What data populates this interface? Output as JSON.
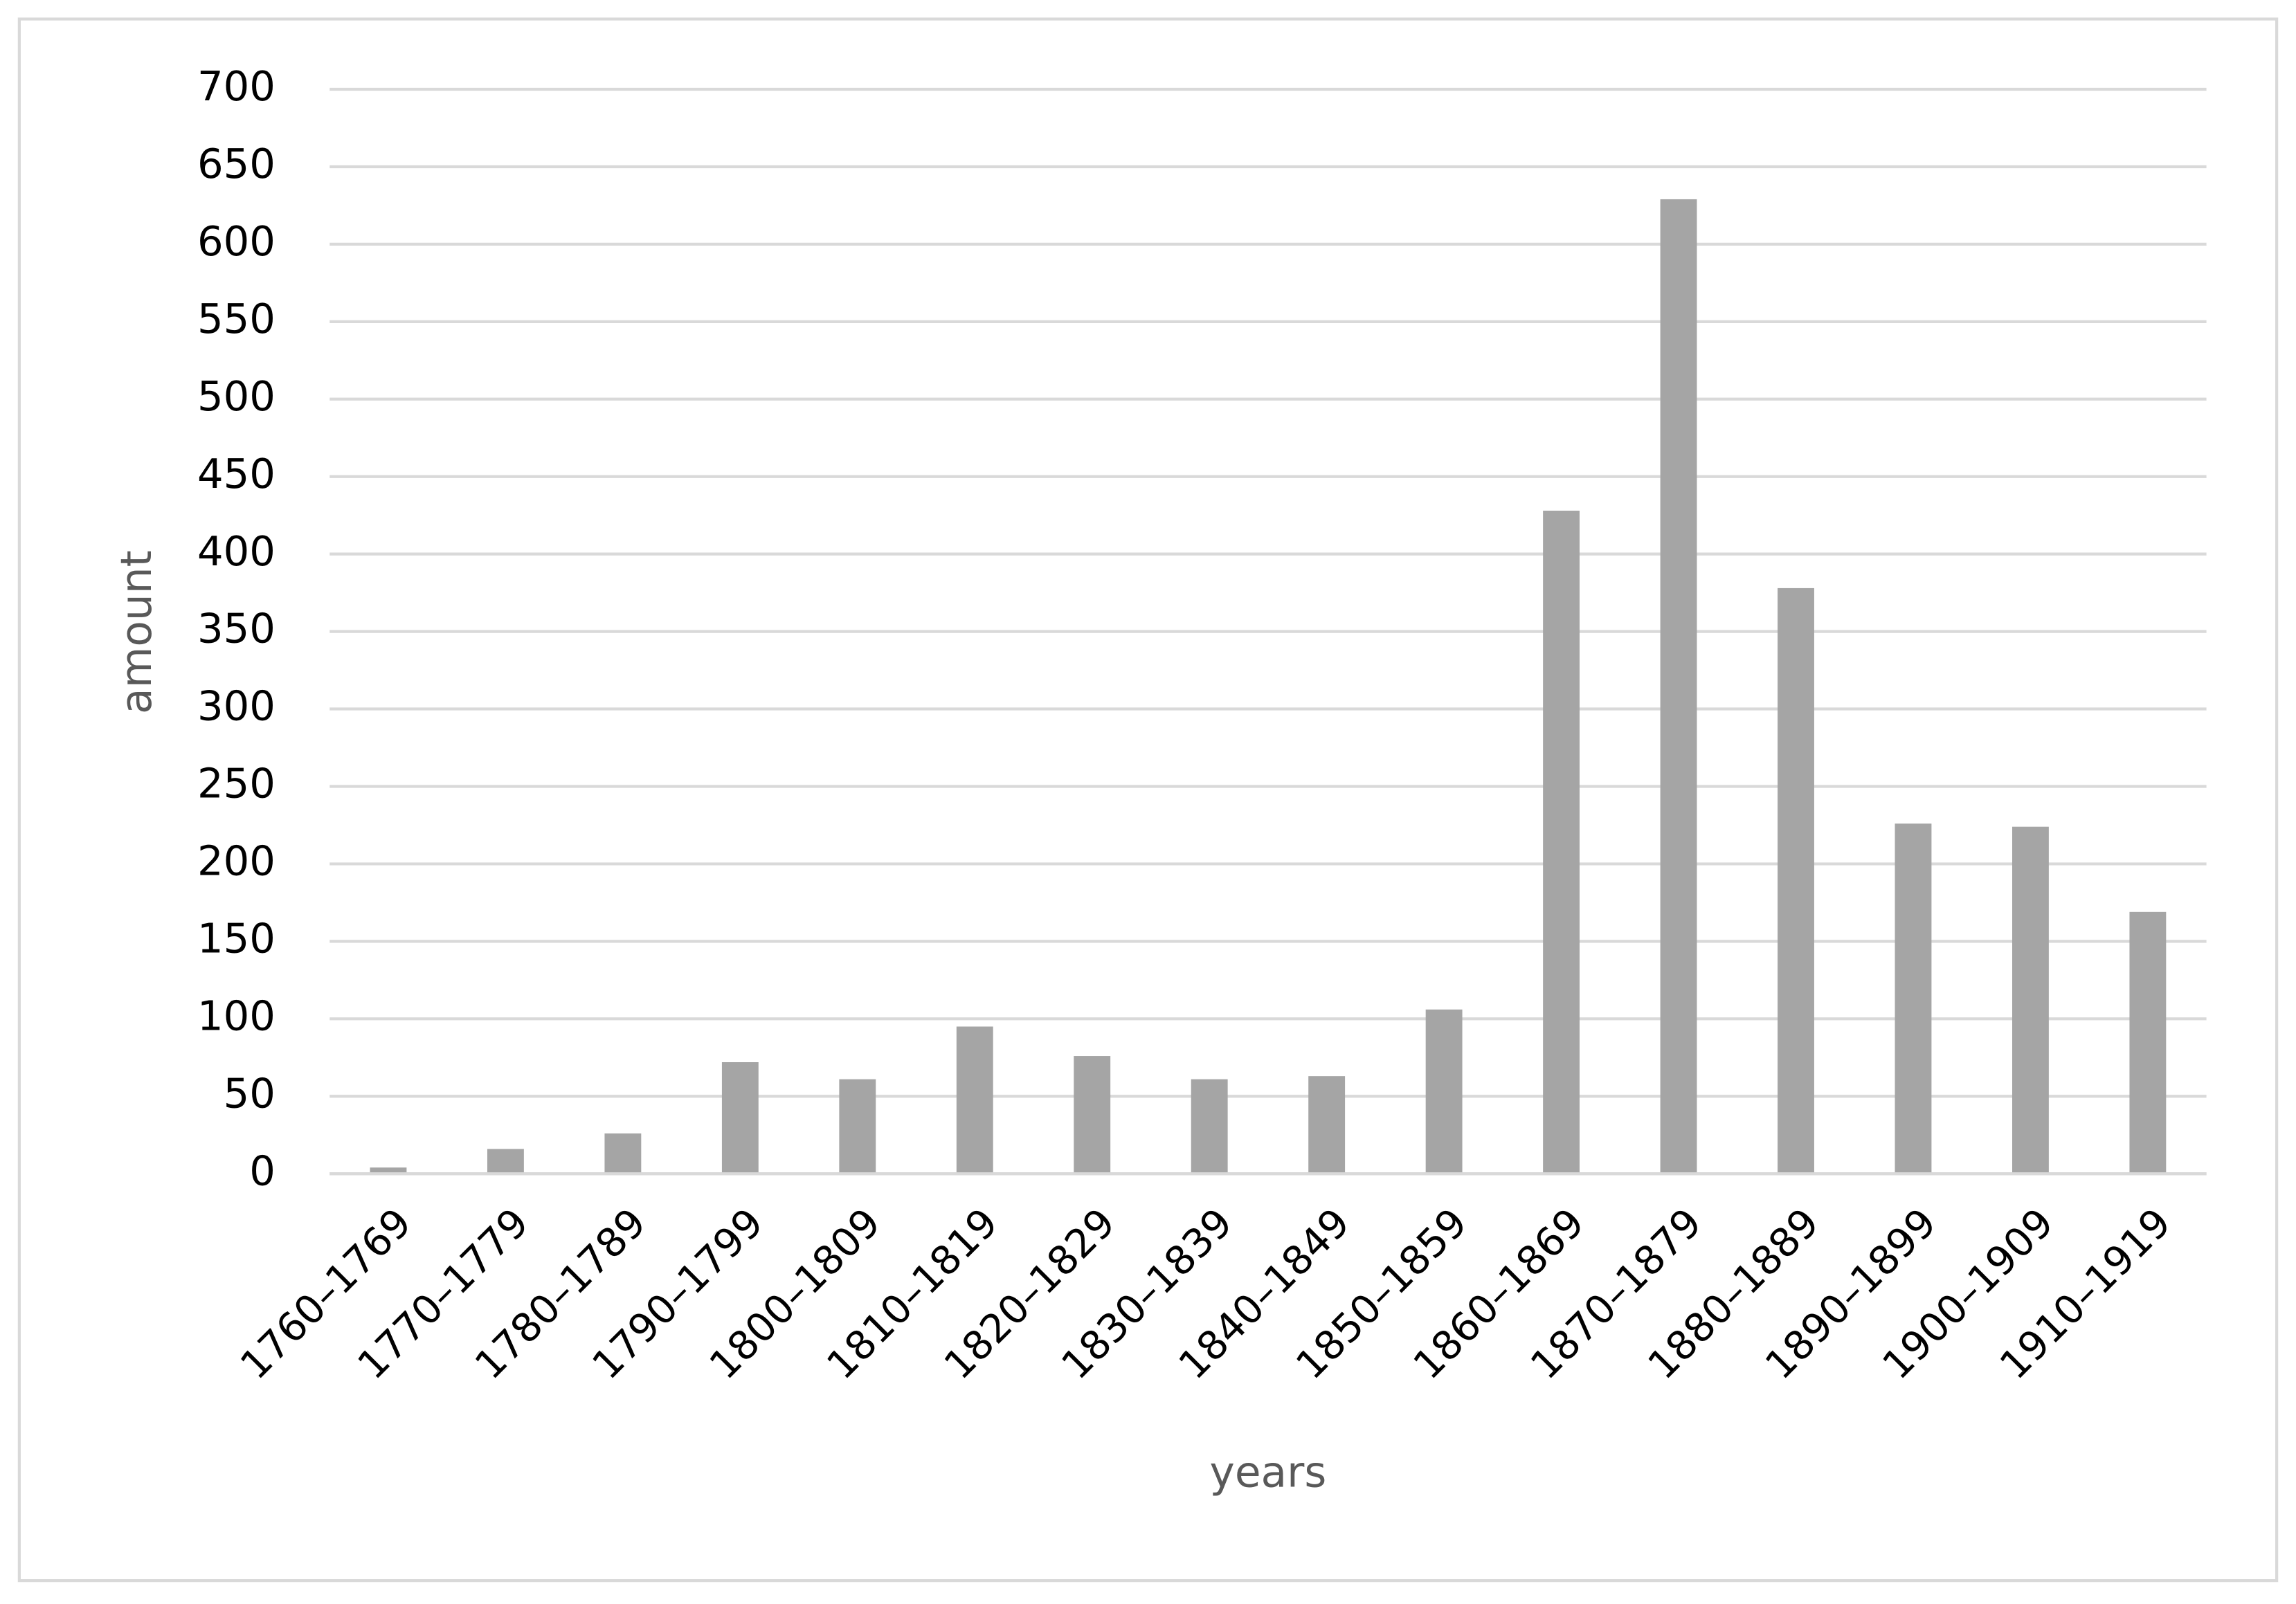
{
  "chart_data": {
    "type": "bar",
    "x_label": "years",
    "y_label": "amount",
    "categories": [
      "1760–1769",
      "1770–1779",
      "1780–1789",
      "1790–1799",
      "1800–1809",
      "1810–1819",
      "1820–1829",
      "1830–1839",
      "1840–1849",
      "1850–1859",
      "1860–1869",
      "1870–1879",
      "1880–1889",
      "1890–1899",
      "1900–1909",
      "1910–1919"
    ],
    "values": [
      4,
      16,
      26,
      72,
      61,
      95,
      76,
      61,
      63,
      106,
      428,
      629,
      378,
      226,
      224,
      169
    ],
    "color": "#a5a5a5",
    "ylim": [
      0,
      700
    ],
    "yticks": [
      0,
      50,
      100,
      150,
      200,
      250,
      300,
      350,
      400,
      450,
      500,
      550,
      600,
      650,
      700
    ],
    "grid": true
  }
}
